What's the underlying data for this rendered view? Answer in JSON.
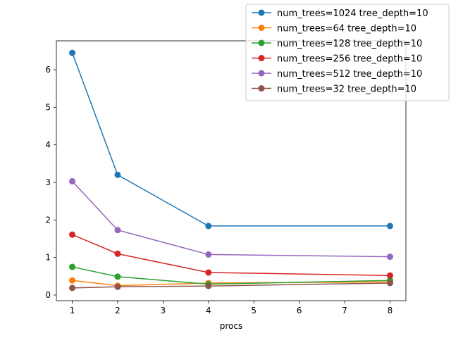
{
  "chart_data": {
    "type": "line",
    "title": "",
    "xlabel": "procs",
    "ylabel": "",
    "x": [
      1,
      2,
      4,
      8
    ],
    "xlim": [
      0.65,
      8.35
    ],
    "ylim": [
      -0.15,
      6.77
    ],
    "xticks": [
      1,
      2,
      3,
      4,
      5,
      6,
      7,
      8
    ],
    "yticks": [
      0,
      1,
      2,
      3,
      4,
      5,
      6
    ],
    "grid": false,
    "legend_position": "top-right",
    "series": [
      {
        "name": "num_trees=1024 tree_depth=10",
        "color": "#1f77b4",
        "values": [
          6.45,
          3.2,
          1.84,
          1.84
        ]
      },
      {
        "name": "num_trees=64 tree_depth=10",
        "color": "#ff7f0e",
        "values": [
          0.39,
          0.25,
          0.32,
          0.35
        ]
      },
      {
        "name": "num_trees=128 tree_depth=10",
        "color": "#2ca02c",
        "values": [
          0.75,
          0.49,
          0.29,
          0.39
        ]
      },
      {
        "name": "num_trees=256 tree_depth=10",
        "color": "#d62728",
        "values": [
          1.61,
          1.1,
          0.6,
          0.52
        ]
      },
      {
        "name": "num_trees=512 tree_depth=10",
        "color": "#9467bd",
        "values": [
          3.03,
          1.73,
          1.08,
          1.02
        ]
      },
      {
        "name": "num_trees=32 tree_depth=10",
        "color": "#8c564b",
        "values": [
          0.19,
          0.22,
          0.24,
          0.32
        ]
      }
    ]
  }
}
